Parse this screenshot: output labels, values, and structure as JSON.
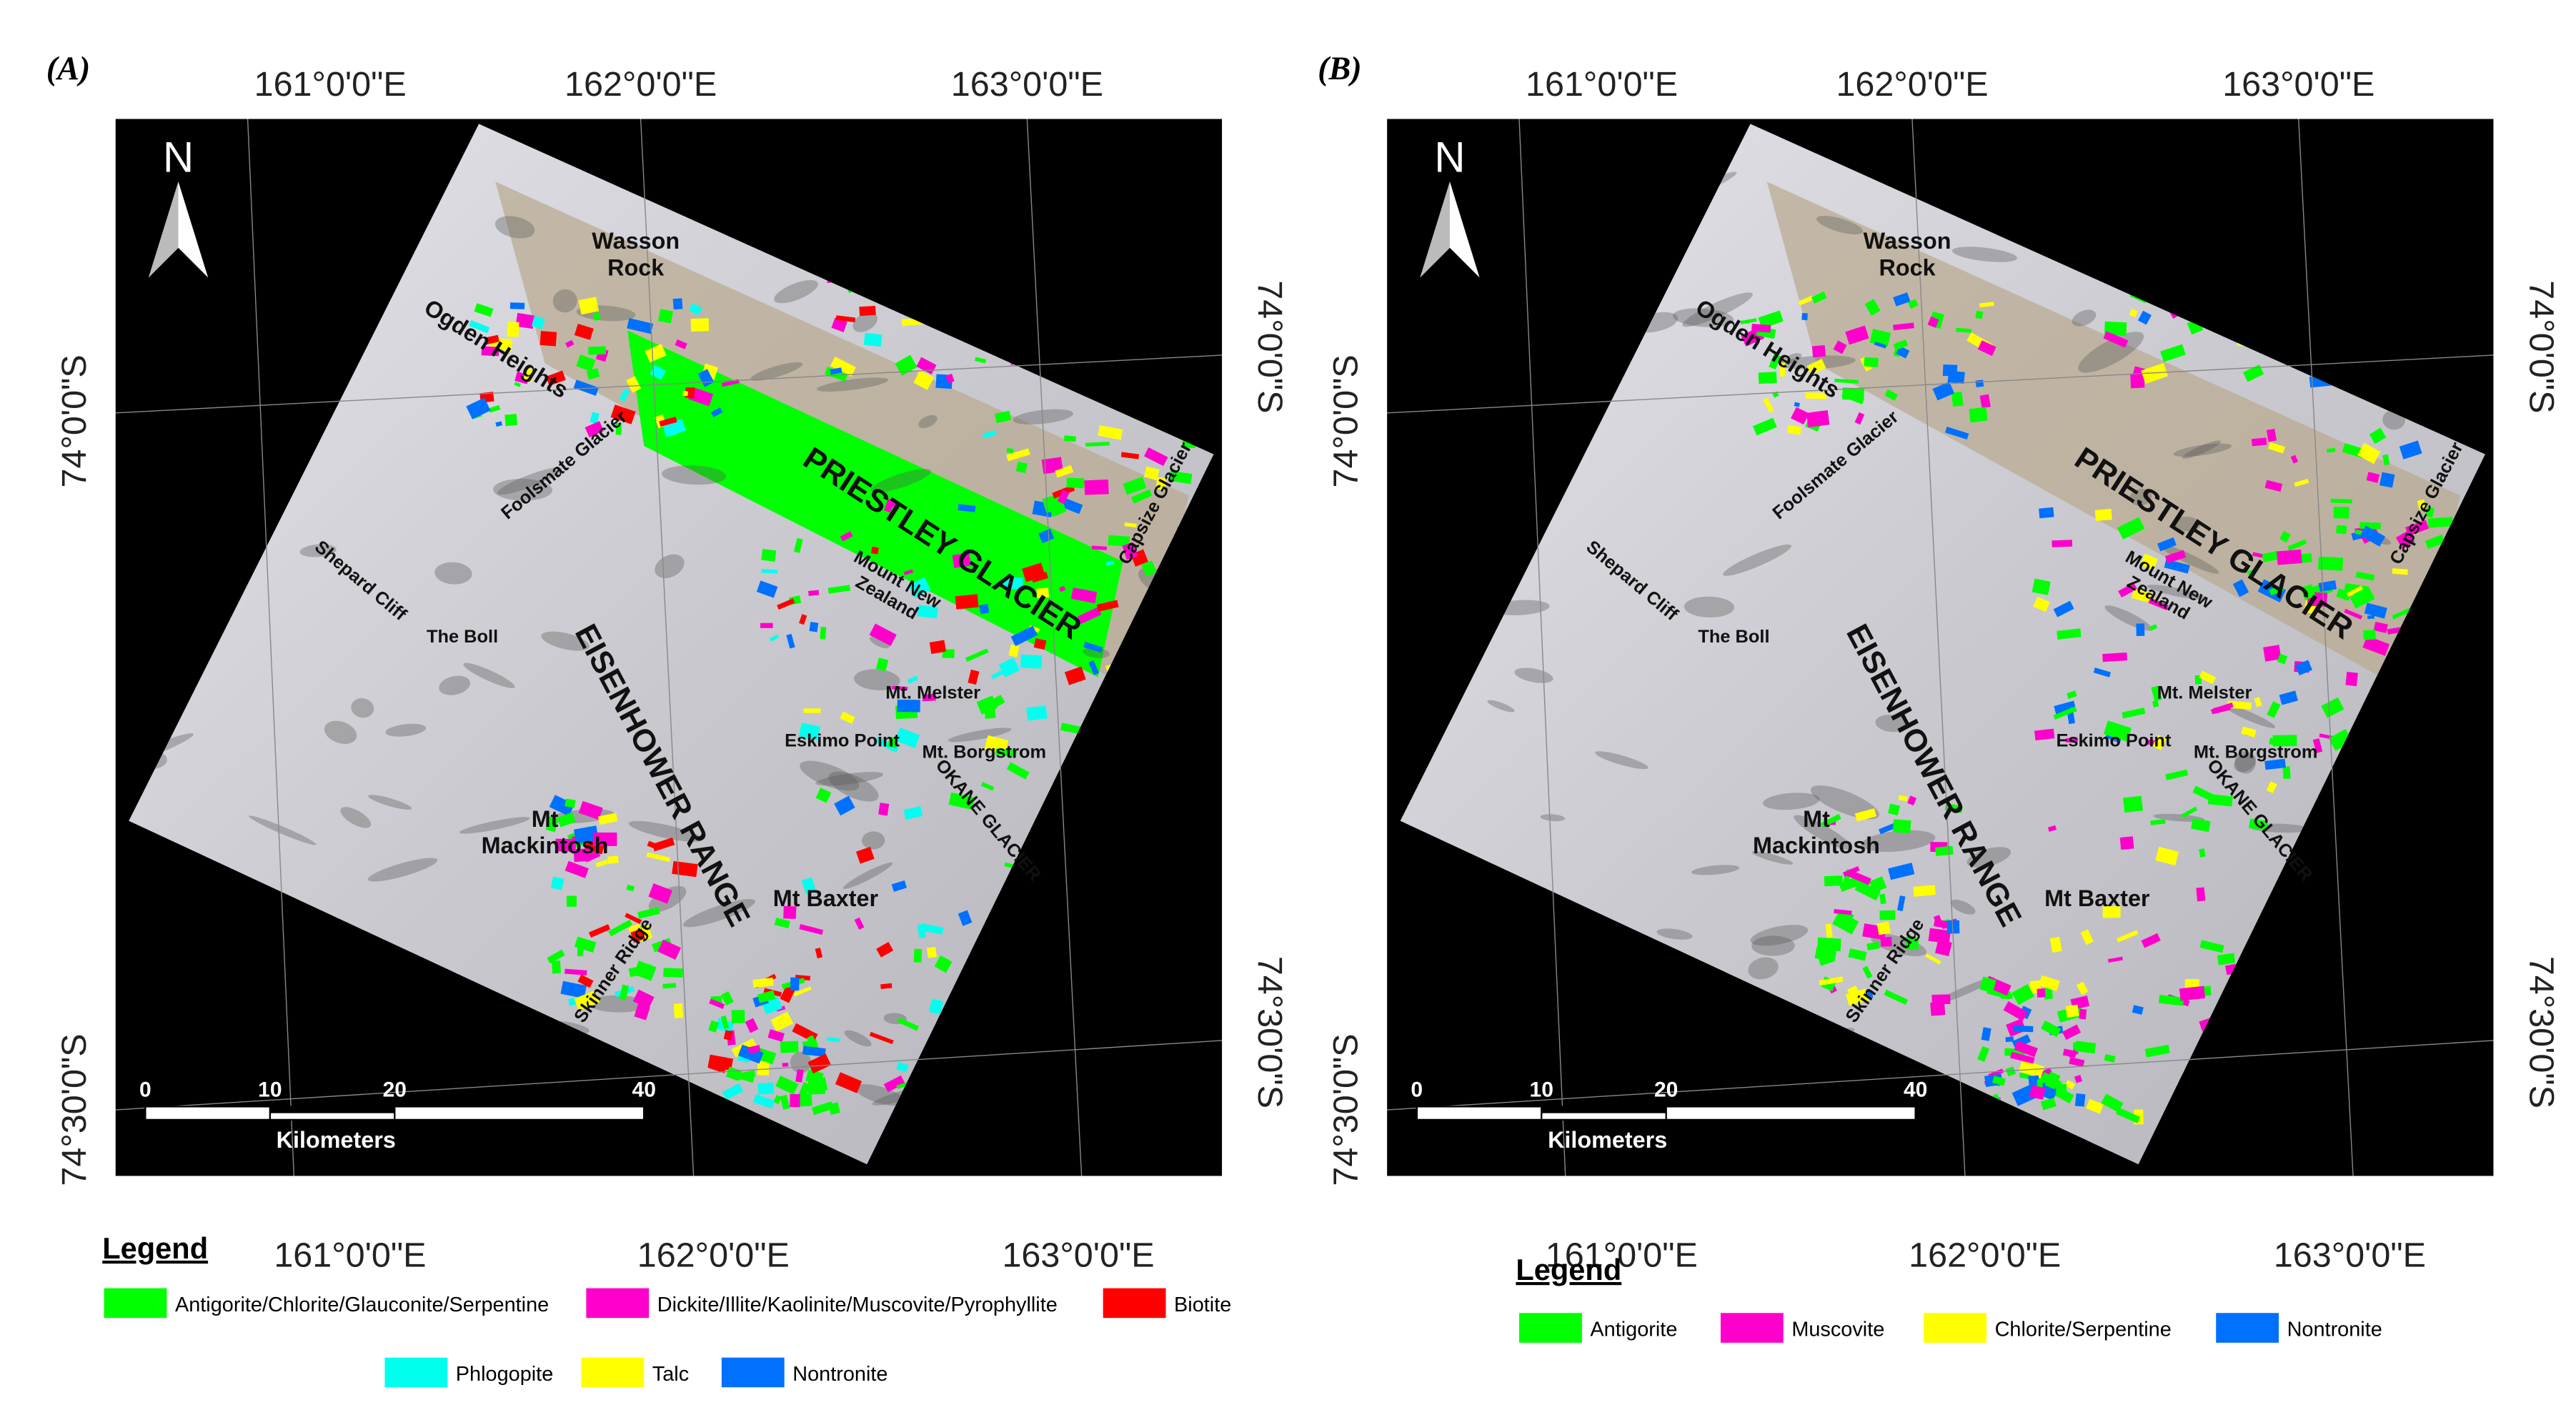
{
  "panels": [
    {
      "label": "(A)",
      "top_lon": [
        "161°0'0\"E",
        "162°0'0\"E",
        "163°0'0\"E"
      ],
      "bottom_lon": [
        "161°0'0\"E",
        "162°0'0\"E",
        "163°0'0\"E"
      ],
      "left_lat": [
        "74°0'0\"S",
        "74°30'0\"S"
      ],
      "right_lat": [
        "74°0'0\"S",
        "74°30'0\"S"
      ],
      "north": "N",
      "places": [
        [
          "Wasson",
          "Rock"
        ],
        [
          "Ogden Heights"
        ],
        [
          "Foolsmate Glacier"
        ],
        [
          "PRIESTLEY GLACIER"
        ],
        [
          "Capsize Glacier"
        ],
        [
          "Shepard Cliff"
        ],
        [
          "The Boll"
        ],
        [
          "EISENHOWER RANGE"
        ],
        [
          "Mount New",
          "Zealand"
        ],
        [
          "Mt. Melster"
        ],
        [
          "Eskimo Point"
        ],
        [
          "Mt. Borgstrom"
        ],
        [
          "OKANE GLACIER"
        ],
        [
          "Mt",
          "Mackintosh"
        ],
        [
          "Mt Baxter"
        ],
        [
          "Skinner Ridge"
        ]
      ],
      "scale": {
        "ticks": [
          0,
          10,
          20,
          40
        ],
        "unit": "Kilometers"
      },
      "legend": {
        "title": "Legend",
        "items": [
          {
            "name": "Antigorite/Chlorite/Glauconite/Serpentine",
            "color": "#00ff00"
          },
          {
            "name": "Dickite/Illite/Kaolinite/Muscovite/Pyrophyllite",
            "color": "#ff00cc"
          },
          {
            "name": "Biotite",
            "color": "#ff0000"
          },
          {
            "name": "Phlogopite",
            "color": "#00ffee"
          },
          {
            "name": "Talc",
            "color": "#ffff00"
          },
          {
            "name": "Nontronite",
            "color": "#0070ff"
          }
        ]
      }
    },
    {
      "label": "(B)",
      "top_lon": [
        "161°0'0\"E",
        "162°0'0\"E",
        "163°0'0\"E"
      ],
      "bottom_lon": [
        "161°0'0\"E",
        "162°0'0\"E",
        "163°0'0\"E"
      ],
      "left_lat": [
        "74°0'0\"S",
        "74°30'0\"S"
      ],
      "right_lat": [
        "74°0'0\"S",
        "74°30'0\"S"
      ],
      "north": "N",
      "places": [
        [
          "Wasson",
          "Rock"
        ],
        [
          "Ogden Heights"
        ],
        [
          "Foolsmate Glacier"
        ],
        [
          "PRIESTLEY GLACIER"
        ],
        [
          "Capsize Glacier"
        ],
        [
          "Shepard Cliff"
        ],
        [
          "The Boll"
        ],
        [
          "EISENHOWER RANGE"
        ],
        [
          "Mount New",
          "Zealand"
        ],
        [
          "Mt. Melster"
        ],
        [
          "Eskimo Point"
        ],
        [
          "Mt. Borgstrom"
        ],
        [
          "OKANE GLACIER"
        ],
        [
          "Mt",
          "Mackintosh"
        ],
        [
          "Mt Baxter"
        ],
        [
          "Skinner Ridge"
        ]
      ],
      "scale": {
        "ticks": [
          0,
          10,
          20,
          40
        ],
        "unit": "Kilometers"
      },
      "legend": {
        "title": "Legend",
        "items": [
          {
            "name": "Antigorite",
            "color": "#00ff00"
          },
          {
            "name": "Muscovite",
            "color": "#ff00cc"
          },
          {
            "name": "Chlorite/Serpentine",
            "color": "#ffff00"
          },
          {
            "name": "Nontronite",
            "color": "#0070ff"
          }
        ]
      }
    }
  ]
}
